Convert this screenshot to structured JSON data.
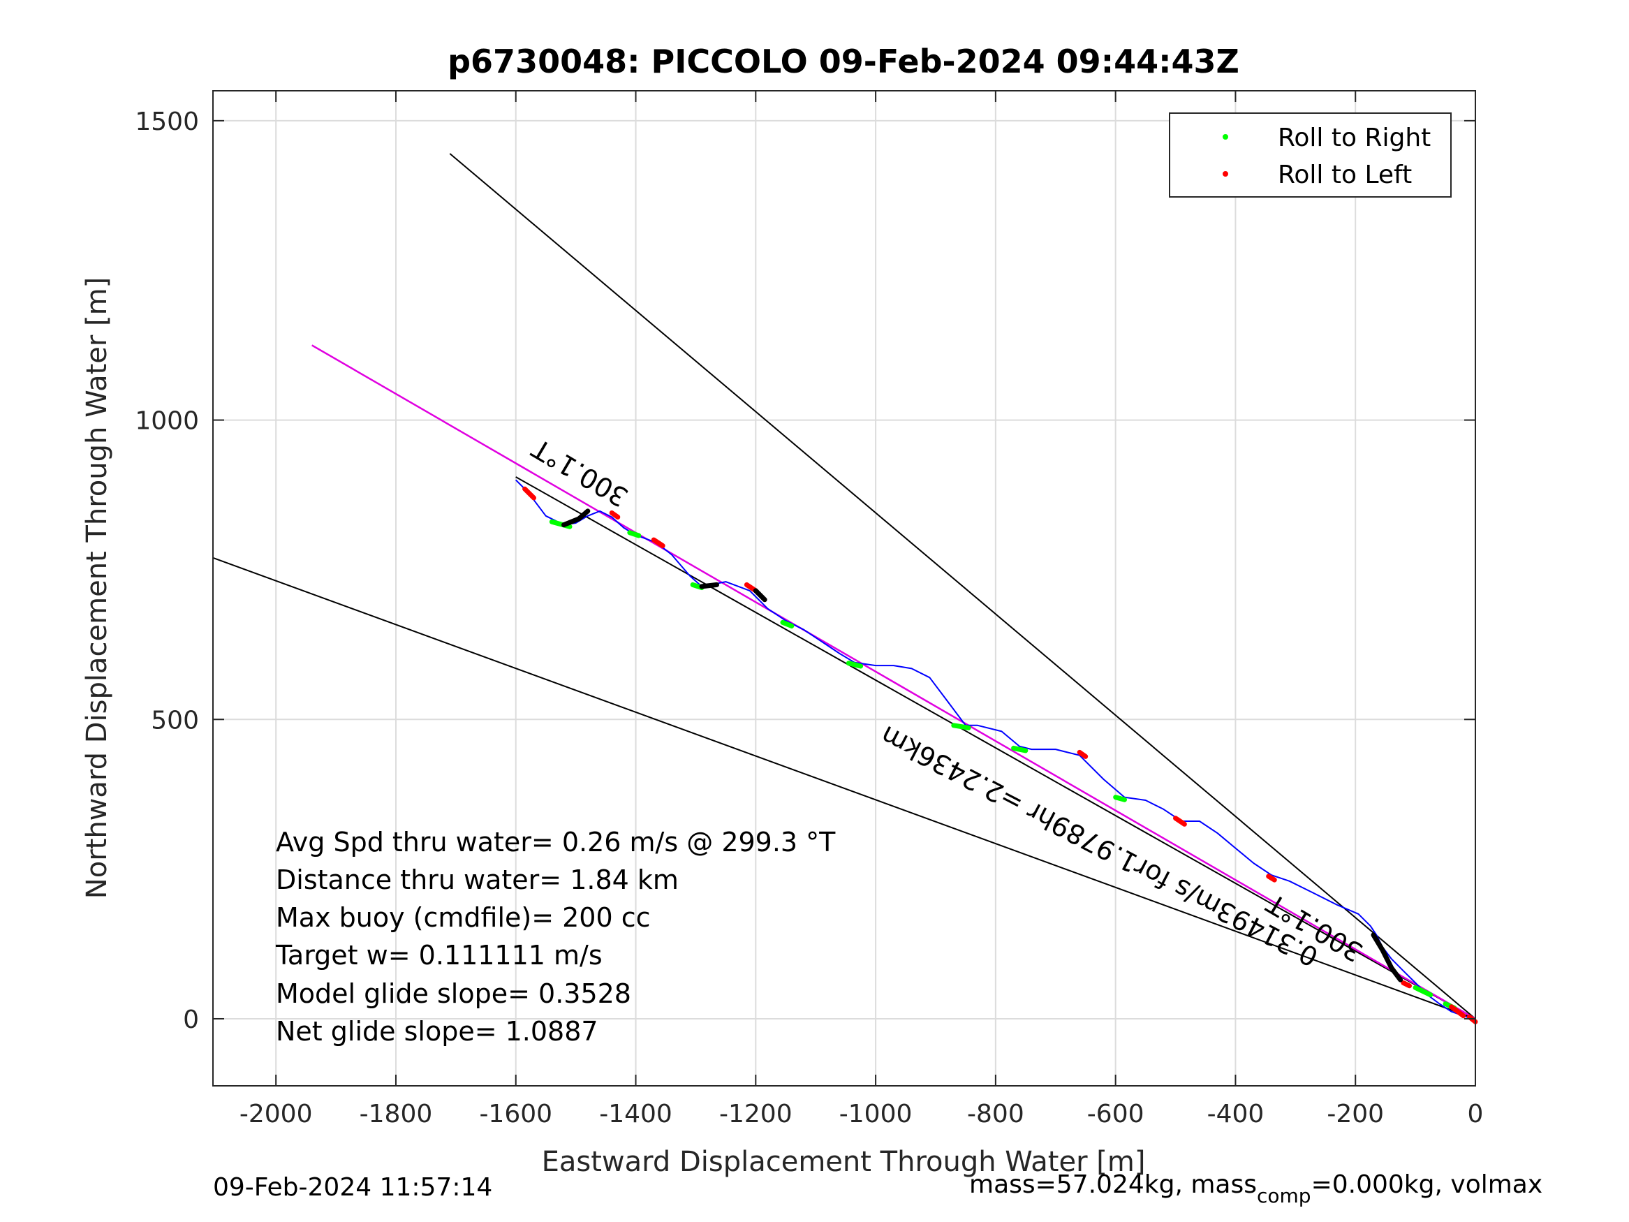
{
  "chart_data": {
    "type": "line",
    "title": "p6730048: PICCOLO 09-Feb-2024 09:44:43Z",
    "xlabel": "Eastward Displacement Through Water [m]",
    "ylabel": "Northward Displacement Through Water [m]",
    "xlim": [
      -2105,
      0
    ],
    "ylim": [
      -112,
      1550
    ],
    "xticks": [
      -2000,
      -1800,
      -1600,
      -1400,
      -1200,
      -1000,
      -800,
      -600,
      -400,
      -200,
      0
    ],
    "yticks": [
      0,
      500,
      1000,
      1500
    ],
    "grid": true,
    "legend_position": "top-right",
    "legend": [
      {
        "label": "Roll to Right",
        "color": "#00ff00"
      },
      {
        "label": "Roll to Left",
        "color": "#ff0000"
      }
    ],
    "reference_lines": [
      {
        "name": "upper bound",
        "color": "#000000",
        "x": [
          0,
          -1710
        ],
        "y": [
          0,
          1445
        ]
      },
      {
        "name": "lower bound",
        "color": "#000000",
        "x": [
          0,
          -2105
        ],
        "y": [
          0,
          770
        ]
      },
      {
        "name": "heading",
        "color": "#000000",
        "x": [
          0,
          -1600
        ],
        "y": [
          0,
          905
        ]
      }
    ],
    "net_track": {
      "color": "#e000e0",
      "x": [
        0,
        -1940
      ],
      "y": [
        0,
        1125
      ]
    },
    "track": {
      "color": "#0000ff",
      "x": [
        -5,
        -20,
        -40,
        -60,
        -80,
        -100,
        -120,
        -140,
        -155,
        -165,
        -175,
        -195,
        -230,
        -270,
        -310,
        -340,
        -370,
        -400,
        -430,
        -460,
        -490,
        -520,
        -550,
        -585,
        -620,
        -660,
        -700,
        -740,
        -760,
        -790,
        -830,
        -850,
        -880,
        -910,
        -940,
        -970,
        -1000,
        -1035,
        -1060,
        -1090,
        -1120,
        -1150,
        -1180,
        -1210,
        -1250,
        -1275,
        -1290,
        -1310,
        -1340,
        -1365,
        -1400,
        -1420,
        -1440,
        -1460,
        -1480,
        -1500,
        -1520,
        -1550,
        -1580,
        -1600
      ],
      "y": [
        0,
        5,
        12,
        25,
        40,
        60,
        80,
        100,
        120,
        140,
        155,
        175,
        190,
        210,
        230,
        240,
        260,
        285,
        310,
        330,
        330,
        350,
        365,
        370,
        400,
        440,
        450,
        450,
        455,
        480,
        490,
        490,
        530,
        570,
        585,
        590,
        590,
        595,
        610,
        630,
        650,
        665,
        685,
        715,
        730,
        725,
        722,
        740,
        775,
        795,
        808,
        820,
        838,
        848,
        840,
        828,
        825,
        840,
        880,
        900
      ]
    },
    "roll_right_segments": [
      {
        "x": [
          -1540,
          -1510
        ],
        "y": [
          830,
          822
        ]
      },
      {
        "x": [
          -1410,
          -1395
        ],
        "y": [
          812,
          807
        ]
      },
      {
        "x": [
          -1305,
          -1290
        ],
        "y": [
          725,
          720
        ]
      },
      {
        "x": [
          -1155,
          -1140
        ],
        "y": [
          662,
          656
        ]
      },
      {
        "x": [
          -1045,
          -1025
        ],
        "y": [
          594,
          589
        ]
      },
      {
        "x": [
          -870,
          -845
        ],
        "y": [
          490,
          486
        ]
      },
      {
        "x": [
          -770,
          -750
        ],
        "y": [
          452,
          448
        ]
      },
      {
        "x": [
          -600,
          -585
        ],
        "y": [
          370,
          366
        ]
      },
      {
        "x": [
          -100,
          -75
        ],
        "y": [
          52,
          40
        ]
      },
      {
        "x": [
          -50,
          -35
        ],
        "y": [
          25,
          18
        ]
      }
    ],
    "roll_left_segments": [
      {
        "x": [
          -1585,
          -1570
        ],
        "y": [
          885,
          870
        ]
      },
      {
        "x": [
          -1440,
          -1430
        ],
        "y": [
          845,
          838
        ]
      },
      {
        "x": [
          -1370,
          -1355
        ],
        "y": [
          800,
          790
        ]
      },
      {
        "x": [
          -1215,
          -1200
        ],
        "y": [
          725,
          715
        ]
      },
      {
        "x": [
          -660,
          -650
        ],
        "y": [
          445,
          438
        ]
      },
      {
        "x": [
          -500,
          -485
        ],
        "y": [
          335,
          325
        ]
      },
      {
        "x": [
          -345,
          -335
        ],
        "y": [
          238,
          232
        ]
      },
      {
        "x": [
          -120,
          -110
        ],
        "y": [
          60,
          55
        ]
      },
      {
        "x": [
          -40,
          -20
        ],
        "y": [
          20,
          5
        ]
      },
      {
        "x": [
          -10,
          0
        ],
        "y": [
          3,
          -5
        ]
      }
    ],
    "black_segments": [
      {
        "x": [
          -1520,
          -1495,
          -1480
        ],
        "y": [
          825,
          835,
          848
        ]
      },
      {
        "x": [
          -1290,
          -1265
        ],
        "y": [
          722,
          725
        ]
      },
      {
        "x": [
          -1200,
          -1185
        ],
        "y": [
          715,
          700
        ]
      },
      {
        "x": [
          -170,
          -155,
          -140,
          -125
        ],
        "y": [
          140,
          115,
          85,
          65
        ]
      }
    ],
    "annotations": {
      "heading_upper": "300.1°T",
      "heading_lower": "300.1°T",
      "speed_line": "0.31493m/s for1.9789hr =2.2436km"
    },
    "info_lines": [
      "Avg Spd thru water=  0.26 m/s @ 299.3 °T",
      "Distance thru water=  1.84 km",
      "Max buoy (cmdfile)= 200 cc",
      "Target w= 0.111111 m/s",
      "Model glide slope= 0.3528",
      "Net glide slope= 1.0887"
    ]
  },
  "footer": {
    "timestamp": "09-Feb-2024 11:57:14",
    "mass_text": "mass=57.024kg, mass",
    "mass_sub": "comp",
    "mass_rest": "=0.000kg, volmax"
  }
}
